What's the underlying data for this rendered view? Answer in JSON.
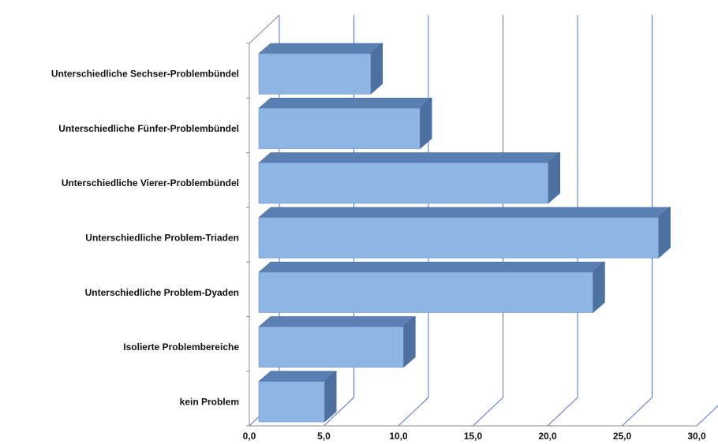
{
  "chart_data": {
    "type": "bar",
    "orientation": "horizontal",
    "style": "3d",
    "categories": [
      "kein Problem",
      "Isolierte Problembereiche",
      "Unterschiedliche Problem-Dyaden",
      "Unterschiedliche Problem-Triaden",
      "Unterschiedliche Vierer-Problembündel",
      "Unterschiedliche Fünfer-Problembündel",
      "Unterschiedliche Sechser-Problembündel"
    ],
    "values": [
      4.4,
      9.7,
      22.4,
      26.8,
      19.4,
      10.8,
      7.5
    ],
    "xlim": [
      0,
      30
    ],
    "xticks": [
      "0,0",
      "5,0",
      "10,0",
      "15,0",
      "20,0",
      "25,0",
      "30,0"
    ],
    "grid": true,
    "legend": "none",
    "colors": {
      "bar_front": "#8fb5e4",
      "bar_top": "#5a7fb3",
      "bar_side": "#4e71a2",
      "grid": "#5b6fc2",
      "axis": "#8a8a8a"
    }
  }
}
